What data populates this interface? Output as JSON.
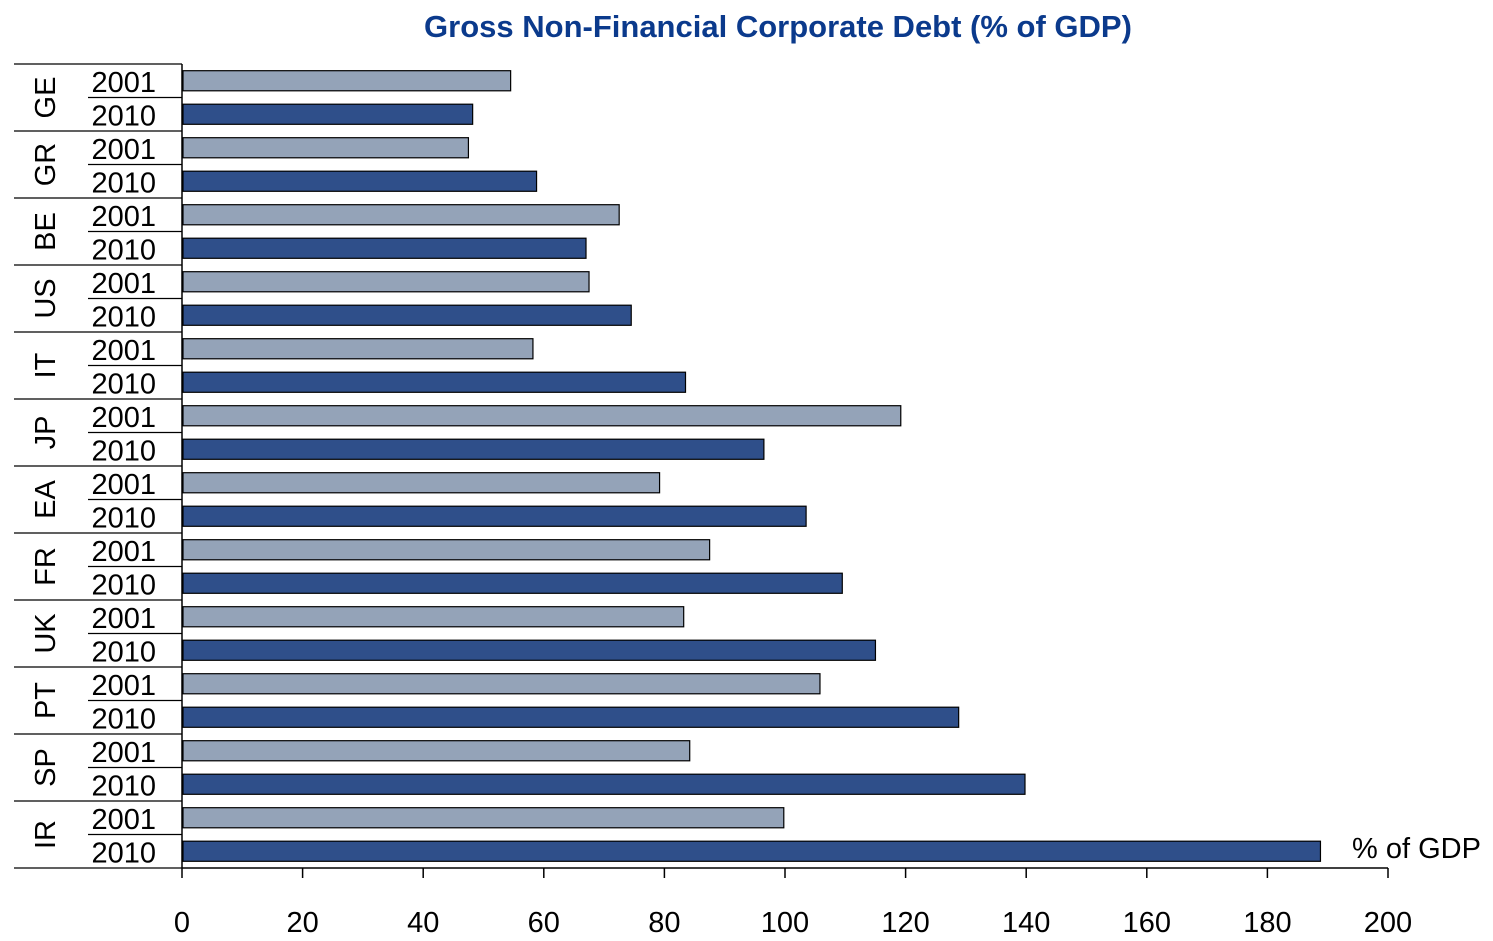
{
  "chart_data": {
    "type": "bar",
    "orientation": "horizontal",
    "title": "Gross Non-Financial Corporate Debt (% of GDP)",
    "xlabel": "% of GDP",
    "xlim": [
      0,
      200
    ],
    "xticks": [
      "0",
      "20",
      "40",
      "60",
      "80",
      "100",
      "120",
      "140",
      "160",
      "180",
      "200"
    ],
    "grid": false,
    "years": [
      "2001",
      "2010"
    ],
    "colors": {
      "2001": "#94a3b8",
      "2010": "#2f4f8a",
      "title": "#0b3a8c"
    },
    "groups": [
      {
        "country": "GE",
        "values": {
          "2001": 54.5,
          "2010": 48.2
        }
      },
      {
        "country": "GR",
        "values": {
          "2001": 47.5,
          "2010": 58.8
        }
      },
      {
        "country": "BE",
        "values": {
          "2001": 72.5,
          "2010": 67.0
        }
      },
      {
        "country": "US",
        "values": {
          "2001": 67.5,
          "2010": 74.5
        }
      },
      {
        "country": "IT",
        "values": {
          "2001": 58.2,
          "2010": 83.5
        }
      },
      {
        "country": "JP",
        "values": {
          "2001": 119.2,
          "2010": 96.5
        }
      },
      {
        "country": "EA",
        "values": {
          "2001": 79.2,
          "2010": 103.5
        }
      },
      {
        "country": "FR",
        "values": {
          "2001": 87.5,
          "2010": 109.5
        }
      },
      {
        "country": "UK",
        "values": {
          "2001": 83.2,
          "2010": 115.0
        }
      },
      {
        "country": "PT",
        "values": {
          "2001": 105.8,
          "2010": 128.8
        }
      },
      {
        "country": "SP",
        "values": {
          "2001": 84.2,
          "2010": 139.8
        }
      },
      {
        "country": "IR",
        "values": {
          "2001": 99.8,
          "2010": 188.8
        }
      }
    ]
  }
}
